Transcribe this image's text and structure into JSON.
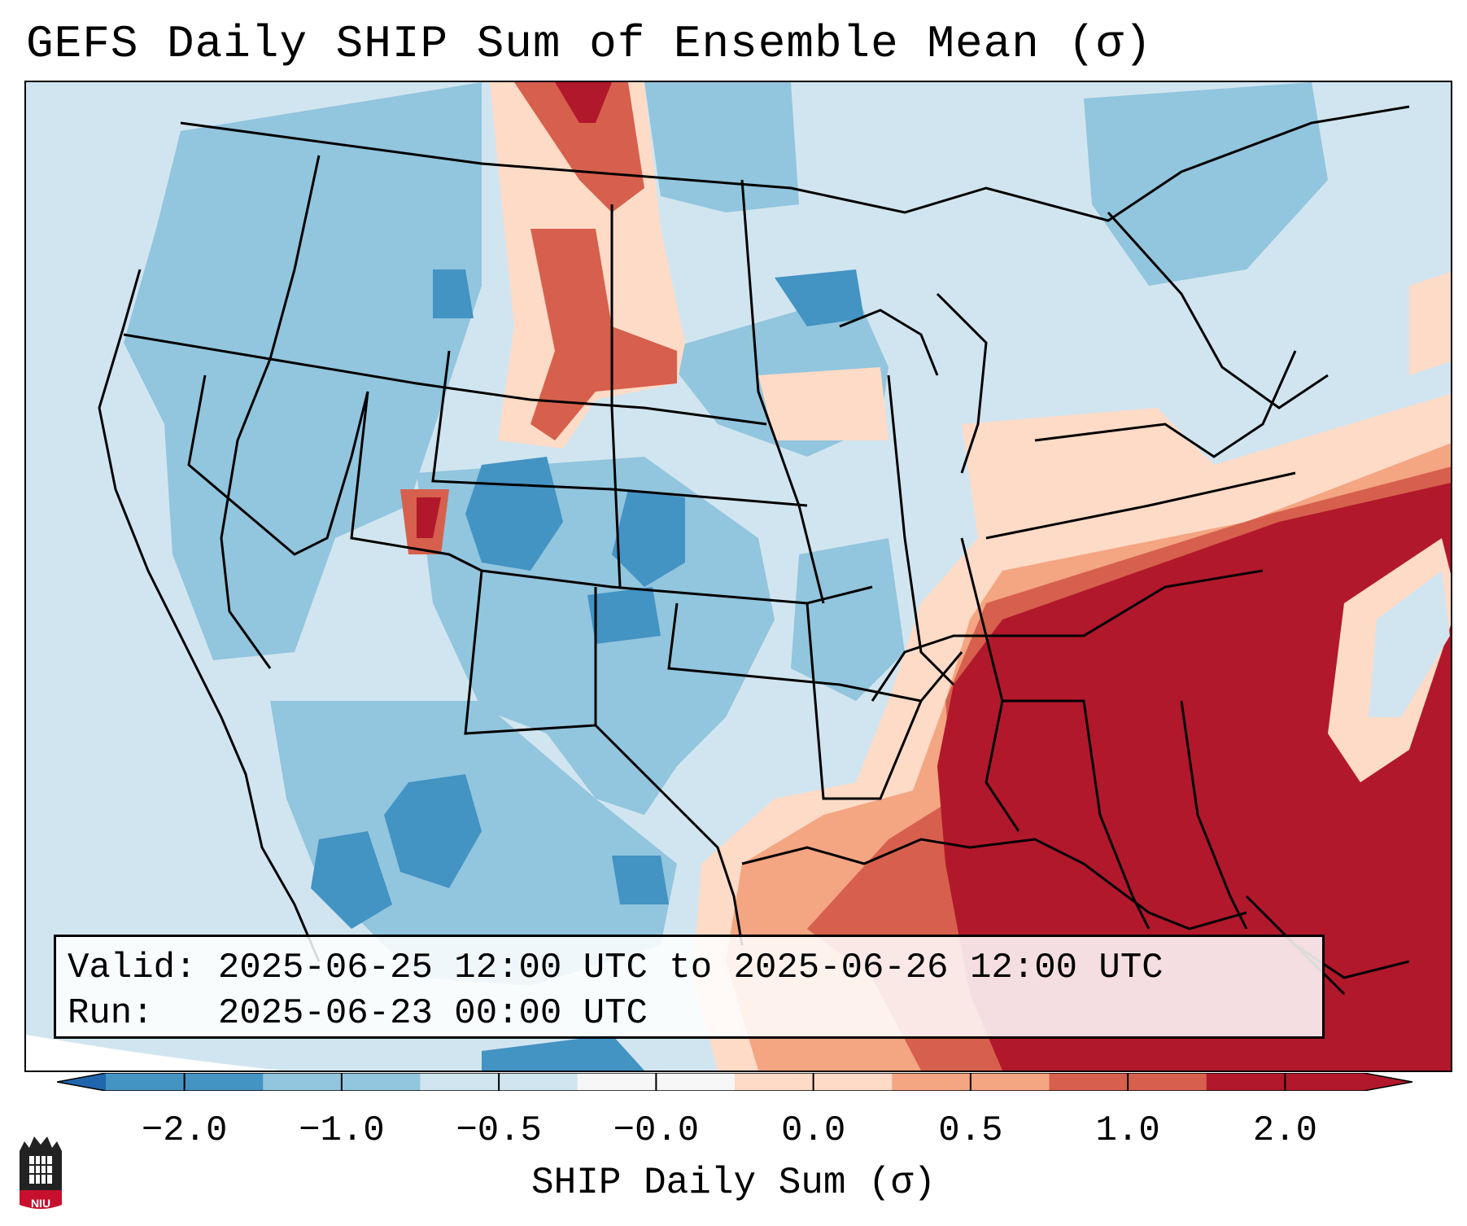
{
  "title": "GEFS Daily SHIP Sum of Ensemble Mean (σ)",
  "info": {
    "valid_label": "Valid:",
    "valid_text": "2025-06-25 12:00 UTC to 2025-06-26 12:00 UTC",
    "run_label": "Run:",
    "run_text": "2025-06-23 00:00 UTC"
  },
  "colorbar": {
    "label": "SHIP Daily Sum (σ)",
    "ticks": [
      "−2.0",
      "−1.0",
      "−0.5",
      "−0.0",
      "0.0",
      "0.5",
      "1.0",
      "2.0"
    ],
    "colors": [
      "#4393c3",
      "#92c5de",
      "#d1e5f0",
      "#f7f7f7",
      "#fddbc7",
      "#f4a582",
      "#d6604d",
      "#b2182b"
    ],
    "under_color": "#2166ac",
    "over_color": "#b2182b"
  },
  "logo": {
    "text": "NIU",
    "color": "#c8102e"
  },
  "map": {
    "projection": "Lambert Conformal",
    "domain": "CONUS"
  }
}
